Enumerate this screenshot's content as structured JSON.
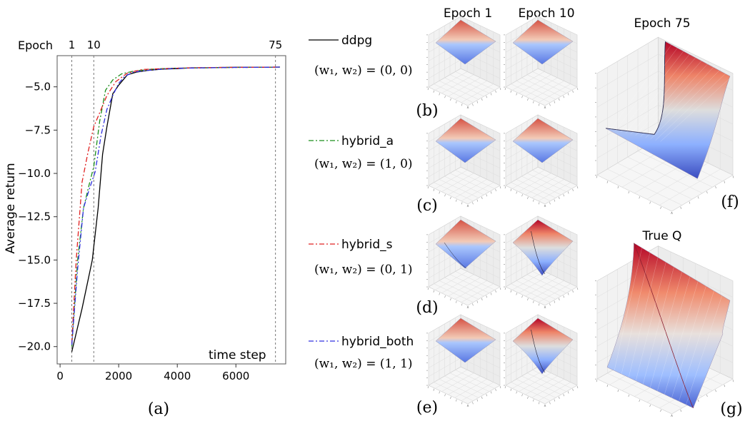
{
  "chart_data": [
    {
      "type": "line",
      "panel_label": "(a)",
      "ylabel": "Average return",
      "xlabel": "time step",
      "epoch_label": "Epoch",
      "epoch_markers": [
        {
          "label": "1",
          "x": 400
        },
        {
          "label": "10",
          "x": 1150
        },
        {
          "label": "75",
          "x": 7350
        }
      ],
      "xlim": [
        -100,
        7700
      ],
      "ylim": [
        -21.0,
        -3.2
      ],
      "xticks": [
        0,
        2000,
        4000,
        6000
      ],
      "xtick_labels": [
        "0",
        "2000",
        "4000",
        "6000"
      ],
      "yticks": [
        -5.0,
        -7.5,
        -10.0,
        -12.5,
        -15.0,
        -17.5,
        -20.0
      ],
      "ytick_labels": [
        "−5.0",
        "−7.5",
        "−10.0",
        "−12.5",
        "−15.0",
        "−17.5",
        "−20.0"
      ],
      "series": [
        {
          "name": "ddpg",
          "color": "#000000",
          "dash": "solid",
          "x": [
            400,
            750,
            1100,
            1300,
            1450,
            1600,
            1800,
            2000,
            2300,
            2600,
            3000,
            3500,
            4000,
            4500,
            5000,
            5500,
            6000,
            6500,
            7000,
            7500
          ],
          "y": [
            -20.3,
            -17.8,
            -15.0,
            -12.0,
            -8.9,
            -7.3,
            -5.4,
            -4.9,
            -4.3,
            -4.15,
            -4.05,
            -3.98,
            -3.95,
            -3.9,
            -3.9,
            -3.88,
            -3.87,
            -3.87,
            -3.87,
            -3.86
          ]
        },
        {
          "name": "hybrid_a",
          "color": "#1a8f1a",
          "dash": "dashdot",
          "x": [
            400,
            600,
            800,
            1000,
            1150,
            1350,
            1550,
            1800,
            2100,
            2500,
            3000,
            3500,
            4000,
            5000,
            6000,
            7000,
            7500
          ],
          "y": [
            -20.0,
            -15.0,
            -12.0,
            -10.6,
            -9.6,
            -7.0,
            -5.2,
            -4.6,
            -4.25,
            -4.1,
            -4.0,
            -3.95,
            -3.92,
            -3.9,
            -3.88,
            -3.87,
            -3.86
          ]
        },
        {
          "name": "hybrid_s",
          "color": "#e02020",
          "dash": "dashdot",
          "x": [
            400,
            550,
            750,
            950,
            1150,
            1350,
            1600,
            1900,
            2300,
            2800,
            3500,
            4500,
            5500,
            6500,
            7500
          ],
          "y": [
            -19.8,
            -15.0,
            -10.5,
            -8.8,
            -7.3,
            -6.5,
            -5.5,
            -4.7,
            -4.2,
            -4.0,
            -3.95,
            -3.9,
            -3.88,
            -3.87,
            -3.86
          ]
        },
        {
          "name": "hybrid_both",
          "color": "#3030e0",
          "dash": "dashdot",
          "x": [
            400,
            600,
            800,
            1000,
            1200,
            1400,
            1600,
            1800,
            2000,
            2200,
            2500,
            3000,
            3500,
            4000,
            5000,
            6000,
            7000,
            7500
          ],
          "y": [
            -19.9,
            -15.5,
            -12.0,
            -10.9,
            -9.9,
            -7.8,
            -6.3,
            -5.5,
            -4.8,
            -4.4,
            -4.15,
            -4.05,
            -3.98,
            -3.93,
            -3.9,
            -3.88,
            -3.87,
            -3.86
          ]
        }
      ]
    },
    {
      "type": "surface",
      "title_epoch1": "Epoch 1",
      "title_epoch10": "Epoch 10",
      "title_epoch75": "Epoch 75",
      "title_trueq": "True Q",
      "panel_labels": [
        "(b)",
        "(c)",
        "(d)",
        "(e)",
        "(f)",
        "(g)"
      ]
    }
  ],
  "legend": [
    {
      "name": "ddpg",
      "color": "#000000",
      "dash": "solid",
      "weights": "(w₁, w₂) = (0, 0)"
    },
    {
      "name": "hybrid_a",
      "color": "#1a8f1a",
      "dash": "dashdot",
      "weights": "(w₁, w₂) = (1, 0)"
    },
    {
      "name": "hybrid_s",
      "color": "#e02020",
      "dash": "dashdot",
      "weights": "(w₁, w₂) = (0, 1)"
    },
    {
      "name": "hybrid_both",
      "color": "#3030e0",
      "dash": "dashdot",
      "weights": "(w₁, w₂) = (1, 1)"
    }
  ]
}
